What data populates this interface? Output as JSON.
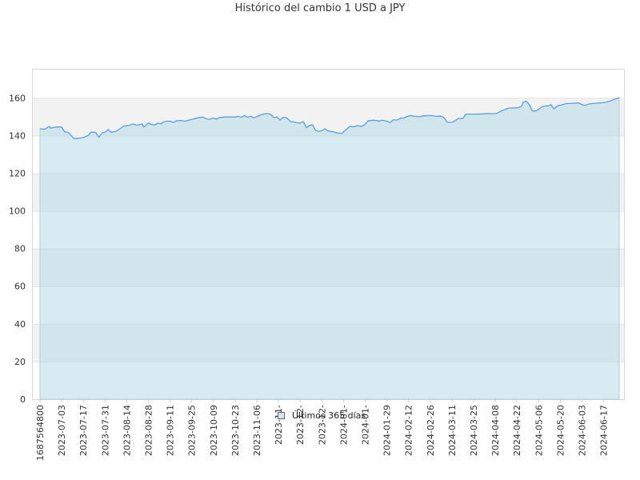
{
  "chart_data": {
    "type": "area",
    "title": "Histórico del cambio 1 USD a JPY",
    "xlabel": "",
    "ylabel": "",
    "ylim": [
      0,
      175
    ],
    "yticks": [
      0,
      20,
      40,
      60,
      80,
      100,
      120,
      140,
      160
    ],
    "grid": "horizontal bands",
    "legend": "bottom-center",
    "x_start": "2023-06-19",
    "x_end": "2024-06-27",
    "xtick_labels": [
      {
        "date": "2023-06-19",
        "label": "1687564800"
      },
      {
        "date": "2023-07-03",
        "label": "2023-07-03"
      },
      {
        "date": "2023-07-17",
        "label": "2023-07-17"
      },
      {
        "date": "2023-07-31",
        "label": "2023-07-31"
      },
      {
        "date": "2023-08-14",
        "label": "2023-08-14"
      },
      {
        "date": "2023-08-28",
        "label": "2023-08-28"
      },
      {
        "date": "2023-09-11",
        "label": "2023-09-11"
      },
      {
        "date": "2023-09-25",
        "label": "2023-09-25"
      },
      {
        "date": "2023-10-09",
        "label": "2023-10-09"
      },
      {
        "date": "2023-10-23",
        "label": "2023-10-23"
      },
      {
        "date": "2023-11-06",
        "label": "2023-11-06"
      },
      {
        "date": "2023-11-20",
        "label": "2023-11-"
      },
      {
        "date": "2023-12-04",
        "label": "2023-12-"
      },
      {
        "date": "2023-12-18",
        "label": "2023-12-"
      },
      {
        "date": "2024-01-01",
        "label": "2024-01-"
      },
      {
        "date": "2024-01-15",
        "label": "2024-01-"
      },
      {
        "date": "2024-01-29",
        "label": "2024-01-29"
      },
      {
        "date": "2024-02-12",
        "label": "2024-02-12"
      },
      {
        "date": "2024-02-26",
        "label": "2024-02-26"
      },
      {
        "date": "2024-03-11",
        "label": "2024-03-11"
      },
      {
        "date": "2024-03-25",
        "label": "2024-03-25"
      },
      {
        "date": "2024-04-08",
        "label": "2024-04-08"
      },
      {
        "date": "2024-04-22",
        "label": "2024-04-22"
      },
      {
        "date": "2024-05-06",
        "label": "2024-05-06"
      },
      {
        "date": "2024-05-20",
        "label": "2024-05-20"
      },
      {
        "date": "2024-06-03",
        "label": "2024-06-03"
      },
      {
        "date": "2024-06-17",
        "label": "2024-06-17"
      }
    ],
    "series": [
      {
        "name": "Últimos 365 días",
        "color": "#5aa0e0",
        "fill": "#add8e6",
        "points": [
          [
            "2023-06-19",
            143.6
          ],
          [
            "2023-06-22",
            143.4
          ],
          [
            "2023-06-25",
            144.8
          ],
          [
            "2023-06-26",
            143.9
          ],
          [
            "2023-06-29",
            144.5
          ],
          [
            "2023-07-02",
            144.6
          ],
          [
            "2023-07-03",
            144.4
          ],
          [
            "2023-07-05",
            141.9
          ],
          [
            "2023-07-07",
            141.7
          ],
          [
            "2023-07-09",
            140.2
          ],
          [
            "2023-07-11",
            138.3
          ],
          [
            "2023-07-14",
            138.6
          ],
          [
            "2023-07-17",
            138.9
          ],
          [
            "2023-07-20",
            140.0
          ],
          [
            "2023-07-22",
            141.8
          ],
          [
            "2023-07-25",
            141.6
          ],
          [
            "2023-07-27",
            139.0
          ],
          [
            "2023-07-29",
            141.3
          ],
          [
            "2023-07-31",
            141.8
          ],
          [
            "2023-08-02",
            143.2
          ],
          [
            "2023-08-04",
            141.7
          ],
          [
            "2023-08-07",
            142.2
          ],
          [
            "2023-08-10",
            143.8
          ],
          [
            "2023-08-12",
            145.0
          ],
          [
            "2023-08-14",
            145.2
          ],
          [
            "2023-08-16",
            145.6
          ],
          [
            "2023-08-18",
            146.1
          ],
          [
            "2023-08-21",
            145.5
          ],
          [
            "2023-08-24",
            146.2
          ],
          [
            "2023-08-25",
            144.5
          ],
          [
            "2023-08-28",
            146.6
          ],
          [
            "2023-08-30",
            145.9
          ],
          [
            "2023-09-01",
            145.6
          ],
          [
            "2023-09-03",
            146.6
          ],
          [
            "2023-09-05",
            146.2
          ],
          [
            "2023-09-07",
            147.3
          ],
          [
            "2023-09-09",
            147.6
          ],
          [
            "2023-09-11",
            147.6
          ],
          [
            "2023-09-13",
            147.0
          ],
          [
            "2023-09-15",
            147.8
          ],
          [
            "2023-09-18",
            148.0
          ],
          [
            "2023-09-21",
            147.6
          ],
          [
            "2023-09-23",
            148.2
          ],
          [
            "2023-09-26",
            148.8
          ],
          [
            "2023-09-29",
            149.4
          ],
          [
            "2023-10-02",
            149.8
          ],
          [
            "2023-10-04",
            149.0
          ],
          [
            "2023-10-06",
            148.6
          ],
          [
            "2023-10-09",
            149.3
          ],
          [
            "2023-10-11",
            148.7
          ],
          [
            "2023-10-13",
            149.6
          ],
          [
            "2023-10-16",
            149.8
          ],
          [
            "2023-10-20",
            149.9
          ],
          [
            "2023-10-23",
            149.8
          ],
          [
            "2023-10-25",
            150.2
          ],
          [
            "2023-10-27",
            149.7
          ],
          [
            "2023-10-29",
            150.6
          ],
          [
            "2023-10-31",
            149.7
          ],
          [
            "2023-11-02",
            150.3
          ],
          [
            "2023-11-04",
            149.4
          ],
          [
            "2023-11-07",
            150.4
          ],
          [
            "2023-11-10",
            151.4
          ],
          [
            "2023-11-13",
            151.7
          ],
          [
            "2023-11-15",
            151.2
          ],
          [
            "2023-11-17",
            149.6
          ],
          [
            "2023-11-19",
            149.8
          ],
          [
            "2023-11-21",
            148.3
          ],
          [
            "2023-11-23",
            149.6
          ],
          [
            "2023-11-25",
            149.5
          ],
          [
            "2023-11-28",
            147.3
          ],
          [
            "2023-11-30",
            147.2
          ],
          [
            "2023-12-02",
            146.8
          ],
          [
            "2023-12-04",
            146.6
          ],
          [
            "2023-12-06",
            147.4
          ],
          [
            "2023-12-08",
            144.2
          ],
          [
            "2023-12-10",
            145.3
          ],
          [
            "2023-12-12",
            145.7
          ],
          [
            "2023-12-14",
            142.6
          ],
          [
            "2023-12-16",
            142.2
          ],
          [
            "2023-12-18",
            142.6
          ],
          [
            "2023-12-20",
            143.6
          ],
          [
            "2023-12-22",
            142.4
          ],
          [
            "2023-12-25",
            142.1
          ],
          [
            "2023-12-28",
            141.3
          ],
          [
            "2023-12-31",
            141.2
          ],
          [
            "2024-01-03",
            143.4
          ],
          [
            "2024-01-05",
            144.8
          ],
          [
            "2024-01-08",
            144.7
          ],
          [
            "2024-01-10",
            145.2
          ],
          [
            "2024-01-13",
            144.9
          ],
          [
            "2024-01-15",
            146.1
          ],
          [
            "2024-01-17",
            147.9
          ],
          [
            "2024-01-21",
            148.1
          ],
          [
            "2024-01-24",
            147.7
          ],
          [
            "2024-01-26",
            148.1
          ],
          [
            "2024-01-29",
            147.6
          ],
          [
            "2024-01-31",
            146.9
          ],
          [
            "2024-02-02",
            148.3
          ],
          [
            "2024-02-05",
            148.3
          ],
          [
            "2024-02-07",
            149.2
          ],
          [
            "2024-02-09",
            149.3
          ],
          [
            "2024-02-11",
            150.1
          ],
          [
            "2024-02-13",
            150.6
          ],
          [
            "2024-02-16",
            150.2
          ],
          [
            "2024-02-19",
            150.0
          ],
          [
            "2024-02-22",
            150.5
          ],
          [
            "2024-02-26",
            150.6
          ],
          [
            "2024-03-01",
            150.2
          ],
          [
            "2024-03-04",
            150.3
          ],
          [
            "2024-03-06",
            149.4
          ],
          [
            "2024-03-08",
            147.0
          ],
          [
            "2024-03-11",
            147.0
          ],
          [
            "2024-03-13",
            147.8
          ],
          [
            "2024-03-15",
            149.1
          ],
          [
            "2024-03-18",
            149.1
          ],
          [
            "2024-03-20",
            151.3
          ],
          [
            "2024-03-22",
            151.4
          ],
          [
            "2024-03-25",
            151.4
          ],
          [
            "2024-03-28",
            151.4
          ],
          [
            "2024-03-31",
            151.5
          ],
          [
            "2024-04-03",
            151.7
          ],
          [
            "2024-04-06",
            151.6
          ],
          [
            "2024-04-09",
            151.8
          ],
          [
            "2024-04-12",
            153.1
          ],
          [
            "2024-04-15",
            154.1
          ],
          [
            "2024-04-17",
            154.6
          ],
          [
            "2024-04-20",
            154.6
          ],
          [
            "2024-04-23",
            154.8
          ],
          [
            "2024-04-25",
            155.6
          ],
          [
            "2024-04-26",
            157.8
          ],
          [
            "2024-04-28",
            158.2
          ],
          [
            "2024-04-30",
            156.4
          ],
          [
            "2024-05-02",
            153.0
          ],
          [
            "2024-05-04",
            153.0
          ],
          [
            "2024-05-06",
            154.0
          ],
          [
            "2024-05-08",
            155.2
          ],
          [
            "2024-05-10",
            155.7
          ],
          [
            "2024-05-12",
            155.7
          ],
          [
            "2024-05-14",
            156.4
          ],
          [
            "2024-05-16",
            154.2
          ],
          [
            "2024-05-18",
            155.7
          ],
          [
            "2024-05-21",
            156.3
          ],
          [
            "2024-05-24",
            157.0
          ],
          [
            "2024-05-27",
            157.0
          ],
          [
            "2024-05-30",
            157.2
          ],
          [
            "2024-06-01",
            157.3
          ],
          [
            "2024-06-03",
            156.4
          ],
          [
            "2024-06-05",
            156.0
          ],
          [
            "2024-06-07",
            156.7
          ],
          [
            "2024-06-10",
            157.0
          ],
          [
            "2024-06-13",
            157.2
          ],
          [
            "2024-06-16",
            157.4
          ],
          [
            "2024-06-19",
            157.8
          ],
          [
            "2024-06-22",
            158.6
          ],
          [
            "2024-06-24",
            159.3
          ],
          [
            "2024-06-27",
            160.0
          ]
        ]
      }
    ]
  }
}
